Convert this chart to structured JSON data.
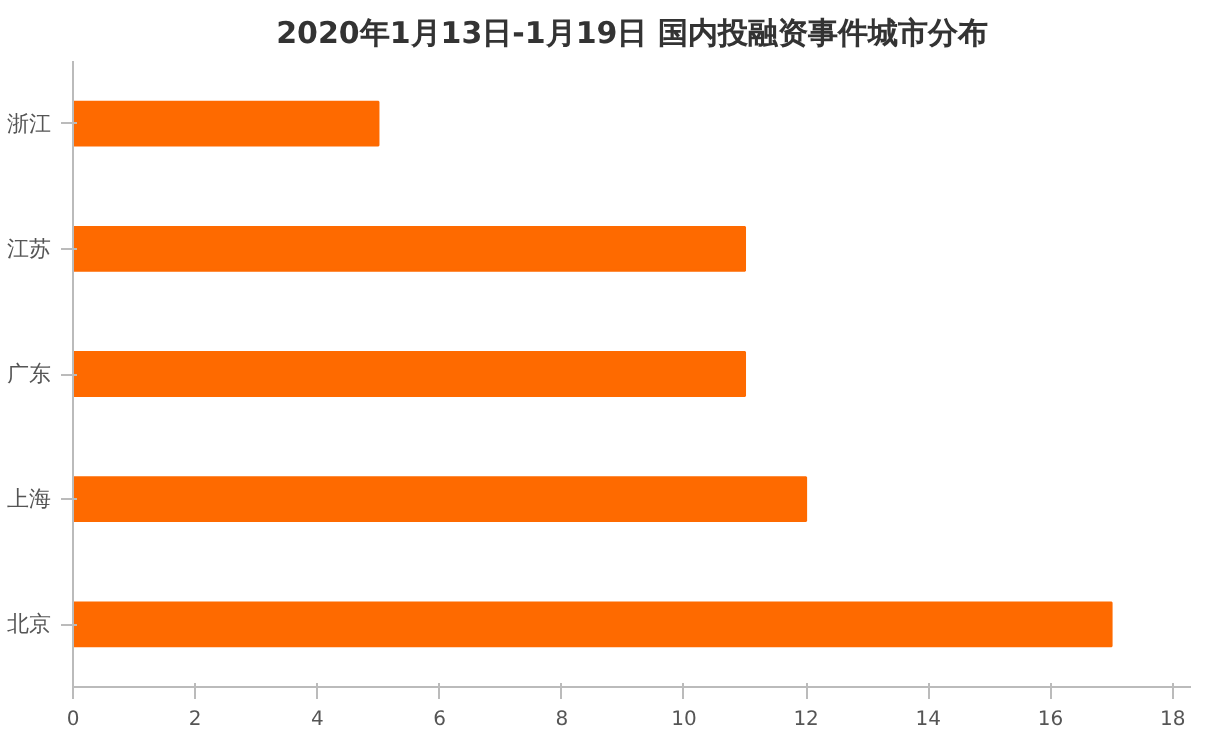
{
  "chart_data": {
    "type": "bar",
    "orientation": "horizontal",
    "title": "2020年1月13日-1月19日 国内投融资事件城市分布",
    "categories": [
      "浙江",
      "江苏",
      "广东",
      "上海",
      "北京"
    ],
    "values": [
      5,
      11,
      11,
      12,
      17
    ],
    "color": "#fe6a00",
    "xlim": [
      0,
      18.3
    ],
    "xticks": [
      0,
      2,
      4,
      6,
      8,
      10,
      12,
      14,
      16,
      18
    ],
    "grid": false
  }
}
